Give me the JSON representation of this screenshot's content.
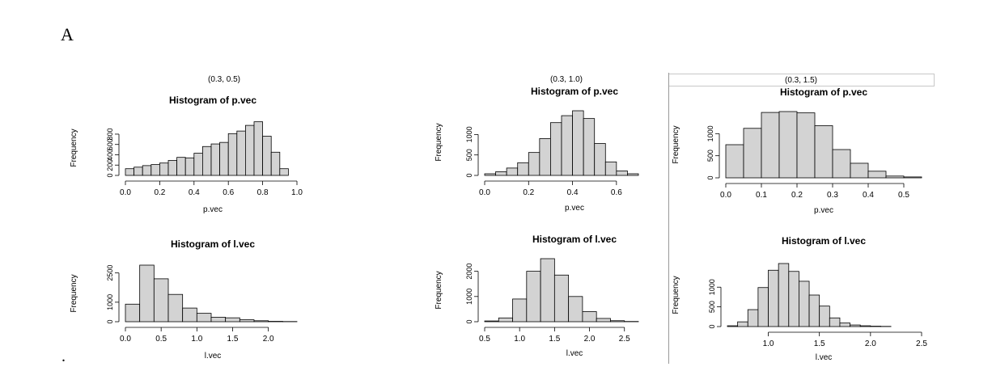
{
  "figure": {
    "panel_label": "A",
    "footer_mark": ".",
    "sets": [
      "(0.3, 0.5)",
      "(0.3, 1.0)",
      "(0.3, 1.5)"
    ]
  },
  "chart_data": [
    {
      "type": "bar",
      "title": "Histogram of p.vec",
      "xlabel": "p.vec",
      "ylabel": "Frequency",
      "bin_start": 0.0,
      "bin_width": 0.05,
      "values": [
        130,
        160,
        190,
        210,
        240,
        290,
        350,
        340,
        430,
        560,
        610,
        640,
        810,
        860,
        970,
        1040,
        760,
        450,
        130
      ],
      "xlim": [
        0,
        1.0
      ],
      "xticks": [
        0.0,
        0.2,
        0.4,
        0.6,
        0.8,
        1.0
      ],
      "xtick_labels": [
        "0.0",
        "0.2",
        "0.4",
        "0.6",
        "0.8",
        "1.0"
      ],
      "ylim": [
        0,
        1050
      ],
      "yticks": [
        0,
        200,
        400,
        600,
        800
      ],
      "ytick_labels": [
        "0",
        "200",
        "400",
        "600",
        "800"
      ]
    },
    {
      "type": "bar",
      "title": "Histogram of l.vec",
      "xlabel": "l.vec",
      "ylabel": "Frequency",
      "bin_start": 0.0,
      "bin_width": 0.2,
      "values": [
        900,
        2900,
        2200,
        1400,
        700,
        430,
        230,
        200,
        100,
        50,
        20,
        10
      ],
      "xlim": [
        0,
        2.4
      ],
      "xticks": [
        0.0,
        0.5,
        1.0,
        1.5,
        2.0
      ],
      "xtick_labels": [
        "0.0",
        "0.5",
        "1.0",
        "1.5",
        "2.0"
      ],
      "ylim": [
        0,
        2900
      ],
      "yticks": [
        0,
        1000,
        2500
      ],
      "ytick_labels": [
        "0",
        "1000",
        "2500"
      ]
    },
    {
      "type": "bar",
      "title": "Histogram of p.vec",
      "xlabel": "p.vec",
      "ylabel": "Frequency",
      "bin_start": 0.0,
      "bin_width": 0.05,
      "values": [
        40,
        90,
        180,
        310,
        560,
        900,
        1290,
        1460,
        1580,
        1390,
        780,
        330,
        110,
        40
      ],
      "xlim": [
        0,
        0.7
      ],
      "xticks": [
        0.0,
        0.2,
        0.4,
        0.6
      ],
      "xtick_labels": [
        "0.0",
        "0.2",
        "0.4",
        "0.6"
      ],
      "ylim": [
        0,
        1600
      ],
      "yticks": [
        0,
        500,
        1000
      ],
      "ytick_labels": [
        "0",
        "500",
        "1000"
      ]
    },
    {
      "type": "bar",
      "title": "Histogram of l.vec",
      "xlabel": "l.vec",
      "ylabel": "Frequency",
      "bin_start": 0.5,
      "bin_width": 0.2,
      "values": [
        30,
        150,
        900,
        2000,
        2500,
        1850,
        1000,
        400,
        130,
        40,
        10
      ],
      "xlim": [
        0.5,
        2.7
      ],
      "xticks": [
        0.5,
        1.0,
        1.5,
        2.0,
        2.5
      ],
      "xtick_labels": [
        "0.5",
        "1.0",
        "1.5",
        "2.0",
        "2.5"
      ],
      "ylim": [
        0,
        2500
      ],
      "yticks": [
        0,
        1000,
        2000
      ],
      "ytick_labels": [
        "0",
        "1000",
        "2000"
      ]
    },
    {
      "type": "bar",
      "title": "Histogram of p.vec",
      "xlabel": "p.vec",
      "ylabel": "Frequency",
      "bin_start": 0.0,
      "bin_width": 0.05,
      "values": [
        750,
        1120,
        1480,
        1500,
        1470,
        1180,
        640,
        330,
        150,
        40,
        20
      ],
      "xlim": [
        0,
        0.55
      ],
      "xticks": [
        0.0,
        0.1,
        0.2,
        0.3,
        0.4,
        0.5
      ],
      "xtick_labels": [
        "0.0",
        "0.1",
        "0.2",
        "0.3",
        "0.4",
        "0.5"
      ],
      "ylim": [
        0,
        1500
      ],
      "yticks": [
        0,
        500,
        1000
      ],
      "ytick_labels": [
        "0",
        "500",
        "1000"
      ]
    },
    {
      "type": "bar",
      "title": "Histogram of l.vec",
      "xlabel": "l.vec",
      "ylabel": "Frequency",
      "bin_start": 0.6,
      "bin_width": 0.1,
      "values": [
        20,
        120,
        430,
        990,
        1430,
        1600,
        1400,
        1150,
        800,
        520,
        220,
        90,
        40,
        20,
        10,
        5
      ],
      "xlim": [
        0.6,
        2.5
      ],
      "xticks": [
        1.0,
        1.5,
        2.0,
        2.5
      ],
      "xtick_labels": [
        "1.0",
        "1.5",
        "2.0",
        "2.5"
      ],
      "ylim": [
        0,
        1600
      ],
      "yticks": [
        0,
        500,
        1000
      ],
      "ytick_labels": [
        "0",
        "500",
        "1000"
      ]
    }
  ]
}
